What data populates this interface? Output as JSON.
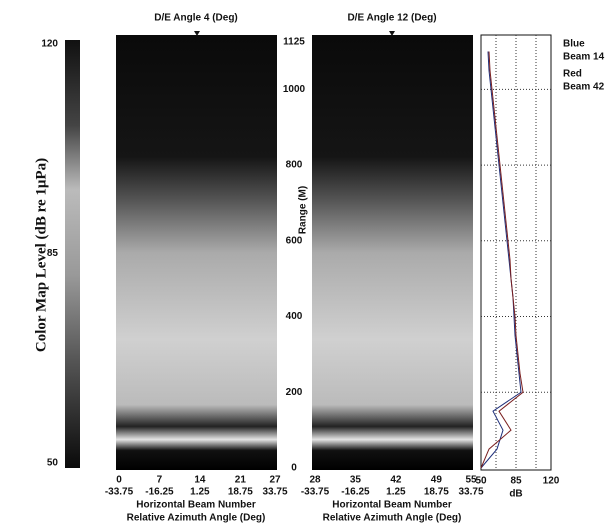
{
  "colorbar": {
    "label": "Color Map Level (dB re 1μPa)",
    "lim": [
      50,
      120
    ],
    "ticks": [
      120,
      85,
      50
    ]
  },
  "range_axis": {
    "label": "Range (M)",
    "lim": [
      0,
      1125
    ],
    "ticks": [
      0,
      200,
      400,
      600,
      800,
      1000,
      1125
    ]
  },
  "panels": [
    {
      "title": "D/E Angle 4 (Deg)",
      "beam_ticks": [
        0,
        7,
        14,
        21,
        27
      ],
      "angle_ticks": [
        -33.75,
        -16.25,
        1.25,
        18.75,
        33.75
      ],
      "xlabel": "Horizontal Beam Number",
      "xlabel2": "Relative Azimuth Angle (Deg)"
    },
    {
      "title": "D/E Angle 12 (Deg)",
      "beam_ticks": [
        28,
        35,
        42,
        49,
        55
      ],
      "angle_ticks": [
        -33.75,
        -16.25,
        1.25,
        18.75,
        33.75
      ],
      "xlabel": "Horizontal Beam Number",
      "xlabel2": "Relative Azimuth Angle (Deg)"
    }
  ],
  "chart_data": {
    "type": "line",
    "xlabel": "dB",
    "x": [
      0,
      50,
      100,
      150,
      200,
      250,
      300,
      350,
      400,
      450,
      500,
      550,
      600,
      650,
      700,
      750,
      800,
      850,
      900,
      950,
      1000,
      1050,
      1100
    ],
    "series": [
      {
        "name": "Beam 14",
        "color_label": "Blue",
        "color": "#1f2f7a",
        "values": [
          50,
          66,
          72,
          62,
          90,
          88,
          86,
          84,
          83,
          82,
          80,
          78,
          76,
          74,
          72,
          70,
          68,
          66,
          64,
          62,
          60,
          58,
          57
        ]
      },
      {
        "name": "Beam 42",
        "color_label": "Red",
        "color": "#7a1f1f",
        "values": [
          50,
          58,
          80,
          68,
          92,
          89,
          87,
          85,
          84,
          82,
          80,
          79,
          77,
          75,
          73,
          71,
          69,
          67,
          65,
          63,
          61,
          59,
          58
        ]
      }
    ],
    "xlim": [
      50,
      120
    ],
    "xticks": [
      50,
      85,
      120
    ],
    "xgrid": [
      65,
      85,
      105
    ],
    "ylim": [
      0,
      1125
    ],
    "yticks": [
      200,
      400,
      600,
      800,
      1000
    ]
  }
}
